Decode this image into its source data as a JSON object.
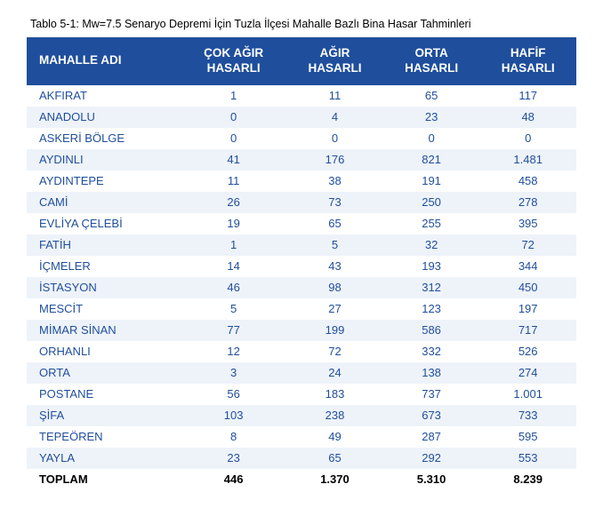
{
  "caption": "Tablo 5-1: Mw=7.5 Senaryo Depremi İçin Tuzla İlçesi Mahalle Bazlı Bina Hasar Tahminleri",
  "table": {
    "type": "table",
    "header_bg": "#1f4e9c",
    "header_fg": "#ffffff",
    "row_alt_bg": "#eef3fa",
    "cell_fg": "#1f4e9c",
    "total_fg": "#000000",
    "font_size": 13,
    "columns": [
      "MAHALLE ADI",
      "ÇOK AĞIR HASARLI",
      "AĞIR HASARLI",
      "ORTA HASARLI",
      "HAFİF HASARLI"
    ],
    "rows": [
      [
        "AKFIRAT",
        "1",
        "11",
        "65",
        "117"
      ],
      [
        "ANADOLU",
        "0",
        "4",
        "23",
        "48"
      ],
      [
        "ASKERİ BÖLGE",
        "0",
        "0",
        "0",
        "0"
      ],
      [
        "AYDINLI",
        "41",
        "176",
        "821",
        "1.481"
      ],
      [
        "AYDINTEPE",
        "11",
        "38",
        "191",
        "458"
      ],
      [
        "CAMİ",
        "26",
        "73",
        "250",
        "278"
      ],
      [
        "EVLİYA ÇELEBİ",
        "19",
        "65",
        "255",
        "395"
      ],
      [
        "FATİH",
        "1",
        "5",
        "32",
        "72"
      ],
      [
        "İÇMELER",
        "14",
        "43",
        "193",
        "344"
      ],
      [
        "İSTASYON",
        "46",
        "98",
        "312",
        "450"
      ],
      [
        "MESCİT",
        "5",
        "27",
        "123",
        "197"
      ],
      [
        "MİMAR SİNAN",
        "77",
        "199",
        "586",
        "717"
      ],
      [
        "ORHANLI",
        "12",
        "72",
        "332",
        "526"
      ],
      [
        "ORTA",
        "3",
        "24",
        "138",
        "274"
      ],
      [
        "POSTANE",
        "56",
        "183",
        "737",
        "1.001"
      ],
      [
        "ŞİFA",
        "103",
        "238",
        "673",
        "733"
      ],
      [
        "TEPEÖREN",
        "8",
        "49",
        "287",
        "595"
      ],
      [
        "YAYLA",
        "23",
        "65",
        "292",
        "553"
      ]
    ],
    "total": [
      "TOPLAM",
      "446",
      "1.370",
      "5.310",
      "8.239"
    ]
  }
}
